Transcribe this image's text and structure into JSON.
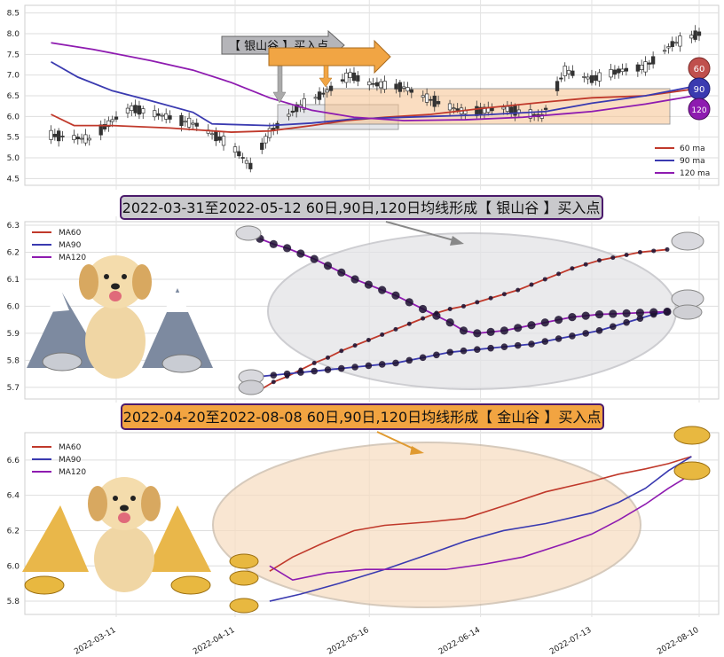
{
  "colors": {
    "ma60": "#c0392b",
    "ma90": "#3a3ab0",
    "ma120": "#8e1bb0",
    "silver_box": "#c8c8cc",
    "gold_box": "#f4b26a",
    "grid": "#d6d6d6"
  },
  "chart_data": [
    {
      "type": "candlestick",
      "panel": "top",
      "ylim": [
        4.4,
        8.6
      ],
      "yticks": [
        "4.5",
        "5.0",
        "5.5",
        "6.0",
        "6.5",
        "7.0",
        "7.5",
        "8.0",
        "8.5"
      ],
      "legend": {
        "placement": "bottom-right",
        "entries": [
          "60 ma",
          "90 ma",
          "120 ma"
        ]
      },
      "badges": [
        "60",
        "90",
        "120"
      ],
      "annotations": [
        {
          "label": "【 银山谷 】买入点",
          "kind": "silver",
          "x_start": "2022-03-31",
          "x_end": "2022-05-12"
        },
        {
          "label": "【 金山谷 】买入点",
          "kind": "gold",
          "x_start": "2022-04-20",
          "x_end": "2022-08-08"
        }
      ],
      "series": [
        {
          "name": "60 ma",
          "color": "#c0392b",
          "points": [
            [
              "2022-02-22",
              6.05
            ],
            [
              "2022-02-28",
              5.78
            ],
            [
              "2022-03-10",
              5.78
            ],
            [
              "2022-03-25",
              5.72
            ],
            [
              "2022-04-10",
              5.62
            ],
            [
              "2022-04-20",
              5.65
            ],
            [
              "2022-05-01",
              5.78
            ],
            [
              "2022-05-10",
              5.9
            ],
            [
              "2022-05-20",
              5.98
            ],
            [
              "2022-06-01",
              6.05
            ],
            [
              "2022-06-15",
              6.2
            ],
            [
              "2022-07-01",
              6.35
            ],
            [
              "2022-07-13",
              6.45
            ],
            [
              "2022-07-27",
              6.5
            ],
            [
              "2022-08-10",
              6.68
            ]
          ]
        },
        {
          "name": "90 ma",
          "color": "#3a3ab0",
          "points": [
            [
              "2022-02-22",
              7.32
            ],
            [
              "2022-03-01",
              6.95
            ],
            [
              "2022-03-10",
              6.62
            ],
            [
              "2022-03-20",
              6.38
            ],
            [
              "2022-03-31",
              6.1
            ],
            [
              "2022-04-05",
              5.82
            ],
            [
              "2022-04-20",
              5.78
            ],
            [
              "2022-05-01",
              5.84
            ],
            [
              "2022-05-12",
              5.94
            ],
            [
              "2022-06-01",
              6.0
            ],
            [
              "2022-06-15",
              6.04
            ],
            [
              "2022-07-01",
              6.12
            ],
            [
              "2022-07-13",
              6.32
            ],
            [
              "2022-07-27",
              6.5
            ],
            [
              "2022-08-10",
              6.75
            ]
          ]
        },
        {
          "name": "120 ma",
          "color": "#8e1bb0",
          "points": [
            [
              "2022-02-22",
              7.78
            ],
            [
              "2022-03-05",
              7.62
            ],
            [
              "2022-03-20",
              7.35
            ],
            [
              "2022-03-31",
              7.12
            ],
            [
              "2022-04-10",
              6.82
            ],
            [
              "2022-04-20",
              6.45
            ],
            [
              "2022-05-01",
              6.15
            ],
            [
              "2022-05-12",
              5.98
            ],
            [
              "2022-05-25",
              5.9
            ],
            [
              "2022-06-10",
              5.92
            ],
            [
              "2022-06-25",
              5.98
            ],
            [
              "2022-07-13",
              6.12
            ],
            [
              "2022-07-27",
              6.3
            ],
            [
              "2022-08-10",
              6.52
            ]
          ]
        }
      ]
    },
    {
      "type": "line",
      "panel": "middle",
      "banner": "2022-03-31至2022-05-12 60日,90日,120日均线形成【 银山谷 】买入点",
      "ylim": [
        5.67,
        6.3
      ],
      "yticks": [
        "5.7",
        "5.8",
        "5.9",
        "6.0",
        "6.1",
        "6.2",
        "6.3"
      ],
      "legend": {
        "placement": "top-left",
        "entries": [
          "MA60",
          "MA90",
          "MA120"
        ]
      },
      "series": [
        {
          "name": "MA60",
          "color": "#c0392b",
          "values": [
            5.69,
            5.72,
            5.74,
            5.765,
            5.79,
            5.81,
            5.835,
            5.855,
            5.875,
            5.895,
            5.915,
            5.935,
            5.955,
            5.975,
            5.99,
            6.0,
            6.015,
            6.03,
            6.045,
            6.06,
            6.08,
            6.1,
            6.12,
            6.14,
            6.155,
            6.17,
            6.18,
            6.19,
            6.2,
            6.205,
            6.21
          ]
        },
        {
          "name": "MA90",
          "color": "#3a3ab0",
          "values": [
            5.74,
            5.745,
            5.75,
            5.755,
            5.76,
            5.765,
            5.77,
            5.775,
            5.78,
            5.785,
            5.79,
            5.8,
            5.81,
            5.82,
            5.83,
            5.835,
            5.84,
            5.845,
            5.85,
            5.855,
            5.86,
            5.87,
            5.88,
            5.89,
            5.9,
            5.91,
            5.925,
            5.94,
            5.955,
            5.97,
            5.98
          ]
        },
        {
          "name": "MA120",
          "color": "#8e1bb0",
          "values": [
            6.25,
            6.23,
            6.215,
            6.195,
            6.175,
            6.15,
            6.125,
            6.1,
            6.08,
            6.06,
            6.04,
            6.015,
            5.99,
            5.965,
            5.94,
            5.91,
            5.9,
            5.905,
            5.91,
            5.92,
            5.93,
            5.94,
            5.95,
            5.96,
            5.965,
            5.97,
            5.972,
            5.974,
            5.976,
            5.978,
            5.98
          ]
        }
      ]
    },
    {
      "type": "line",
      "panel": "bottom",
      "banner": "2022-04-20至2022-08-08 60日,90日,120日均线形成【 金山谷 】买入点",
      "ylim": [
        5.75,
        6.72
      ],
      "yticks": [
        "5.8",
        "6.0",
        "6.2",
        "6.4",
        "6.6"
      ],
      "legend": {
        "placement": "top-left",
        "entries": [
          "MA60",
          "MA90",
          "MA120"
        ]
      },
      "series": [
        {
          "name": "MA60",
          "color": "#c0392b",
          "points": [
            [
              "2022-04-20",
              5.97
            ],
            [
              "2022-04-26",
              6.05
            ],
            [
              "2022-05-04",
              6.13
            ],
            [
              "2022-05-12",
              6.2
            ],
            [
              "2022-05-20",
              6.23
            ],
            [
              "2022-06-01",
              6.25
            ],
            [
              "2022-06-10",
              6.27
            ],
            [
              "2022-06-20",
              6.34
            ],
            [
              "2022-07-01",
              6.42
            ],
            [
              "2022-07-13",
              6.48
            ],
            [
              "2022-07-20",
              6.52
            ],
            [
              "2022-07-27",
              6.55
            ],
            [
              "2022-08-02",
              6.58
            ],
            [
              "2022-08-08",
              6.62
            ]
          ]
        },
        {
          "name": "MA90",
          "color": "#3a3ab0",
          "points": [
            [
              "2022-04-20",
              5.8
            ],
            [
              "2022-04-28",
              5.84
            ],
            [
              "2022-05-08",
              5.9
            ],
            [
              "2022-05-20",
              5.98
            ],
            [
              "2022-06-01",
              6.07
            ],
            [
              "2022-06-10",
              6.14
            ],
            [
              "2022-06-20",
              6.2
            ],
            [
              "2022-07-01",
              6.24
            ],
            [
              "2022-07-13",
              6.3
            ],
            [
              "2022-07-20",
              6.36
            ],
            [
              "2022-07-27",
              6.44
            ],
            [
              "2022-08-02",
              6.54
            ],
            [
              "2022-08-08",
              6.62
            ]
          ]
        },
        {
          "name": "MA120",
          "color": "#8e1bb0",
          "points": [
            [
              "2022-04-20",
              6.0
            ],
            [
              "2022-04-26",
              5.92
            ],
            [
              "2022-05-05",
              5.96
            ],
            [
              "2022-05-15",
              5.98
            ],
            [
              "2022-05-26",
              5.98
            ],
            [
              "2022-06-05",
              5.98
            ],
            [
              "2022-06-15",
              6.01
            ],
            [
              "2022-06-25",
              6.05
            ],
            [
              "2022-07-05",
              6.12
            ],
            [
              "2022-07-13",
              6.18
            ],
            [
              "2022-07-20",
              6.26
            ],
            [
              "2022-07-27",
              6.35
            ],
            [
              "2022-08-02",
              6.44
            ],
            [
              "2022-08-08",
              6.52
            ]
          ]
        }
      ],
      "xticks": [
        "2022-03-11",
        "2022-04-11",
        "2022-05-16",
        "2022-06-14",
        "2022-07-13",
        "2022-08-10"
      ]
    }
  ]
}
